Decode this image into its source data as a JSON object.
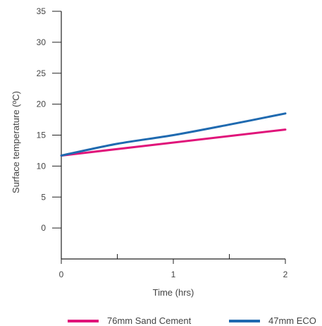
{
  "chart_data": {
    "type": "line",
    "xlabel": "Time (hrs)",
    "ylabel": "Surface temperature (ºC)",
    "xlim": [
      0,
      2
    ],
    "ylim": [
      -5,
      35
    ],
    "x_ticks": [
      0,
      1,
      2
    ],
    "x_minor_ticks": [
      0.5,
      1.5
    ],
    "y_ticks": [
      0,
      5,
      10,
      15,
      20,
      25,
      30,
      35
    ],
    "grid": false,
    "legend_position": "bottom",
    "series": [
      {
        "name": "76mm Sand Cement",
        "color": "#e0147a",
        "x": [
          0,
          2
        ],
        "y": [
          11.7,
          15.9
        ]
      },
      {
        "name": "47mm ECO",
        "color": "#1f6ab0",
        "x": [
          0,
          0.5,
          1.0,
          1.5,
          2.0
        ],
        "y": [
          11.7,
          13.6,
          15.0,
          16.7,
          18.5
        ]
      }
    ]
  }
}
